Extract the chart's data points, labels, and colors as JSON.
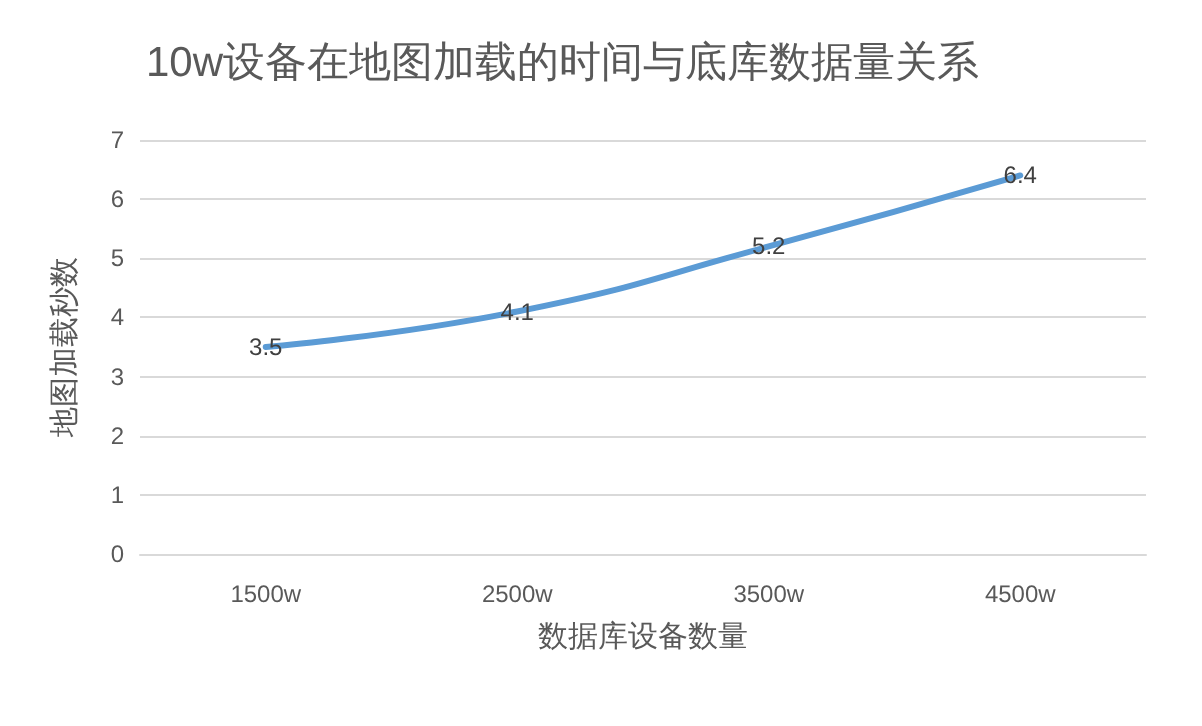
{
  "chart_data": {
    "type": "line",
    "title": "10w设备在地图加载的时间与底库数据量关系",
    "xlabel": "数据库设备数量",
    "ylabel": "地图加载秒数",
    "categories": [
      "1500w",
      "2500w",
      "3500w",
      "4500w"
    ],
    "series": [
      {
        "color": "#5b9bd5",
        "values": [
          3.5,
          4.1,
          5.2,
          6.4
        ]
      }
    ],
    "ylim": [
      0,
      7
    ],
    "yticks": [
      0,
      1,
      2,
      3,
      4,
      5,
      6,
      7
    ],
    "grid": "y",
    "data_labels": true,
    "marker": "none",
    "line_style": "solid"
  }
}
